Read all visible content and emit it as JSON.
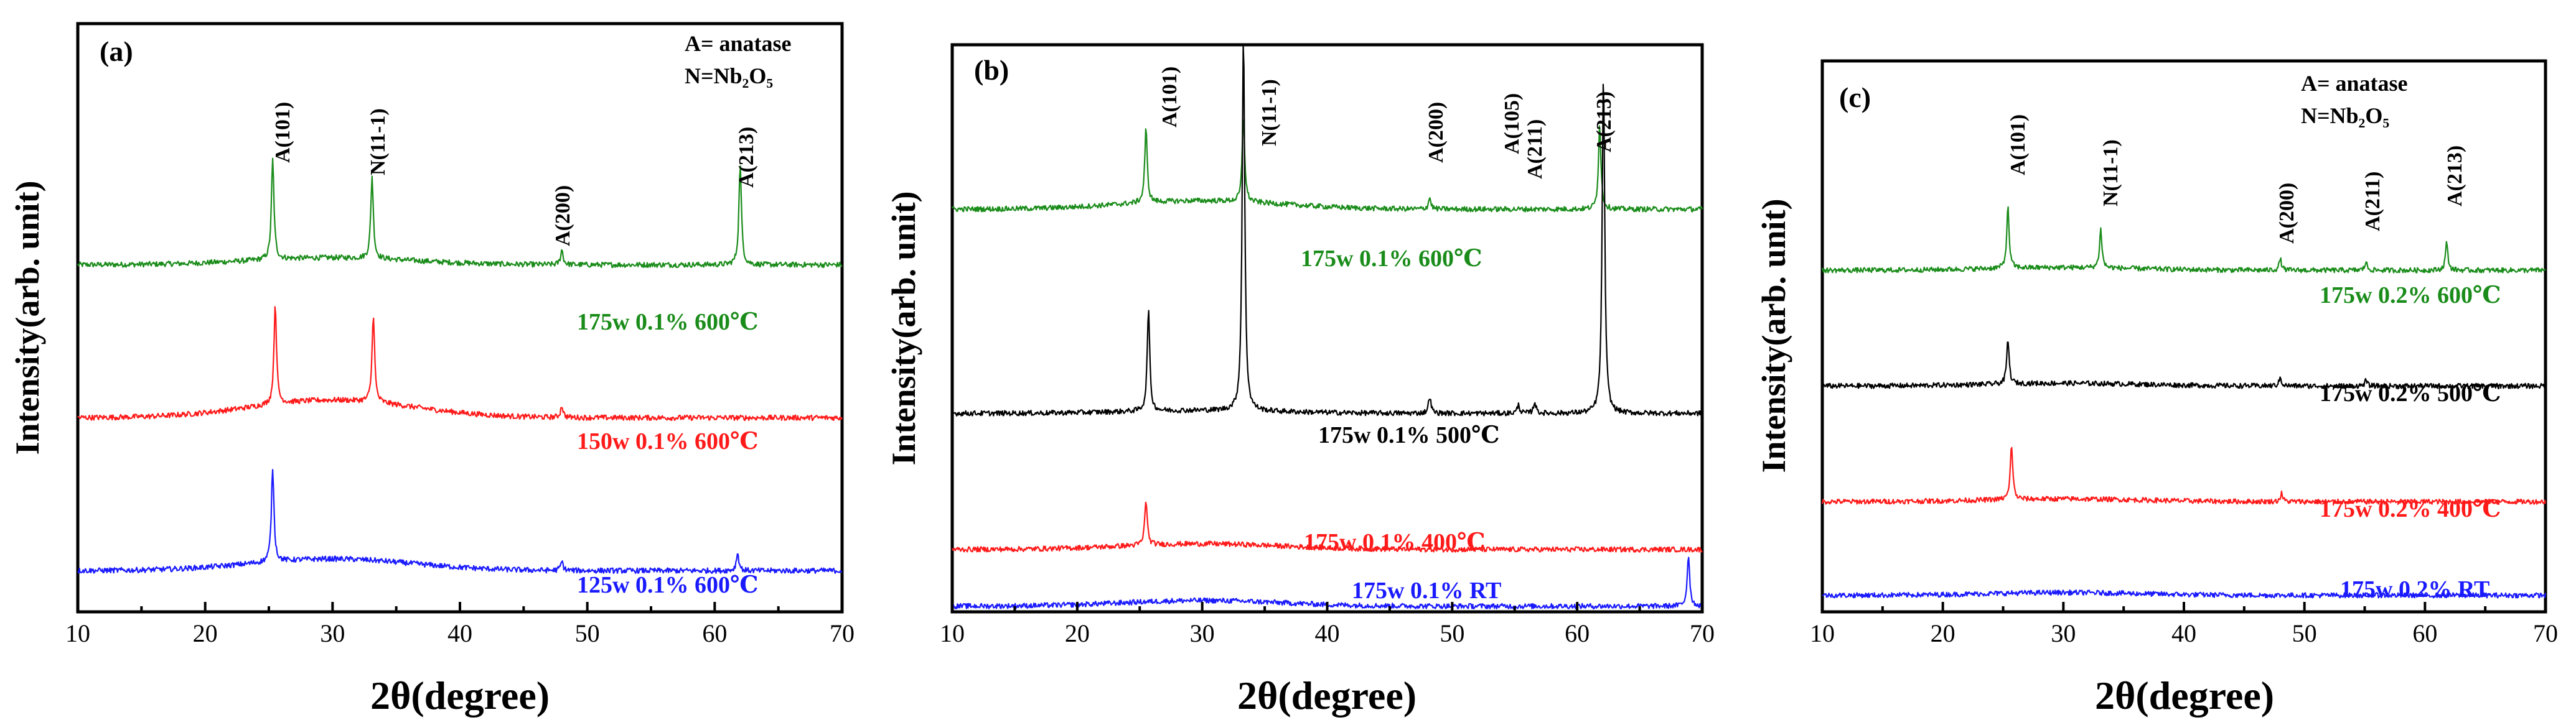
{
  "chart_data": [
    {
      "type": "line",
      "panel": "(a)",
      "xlabel": "2θ(degree)",
      "ylabel": "Intensity(arb. unit)",
      "xlim": [
        10,
        70
      ],
      "xticks": [
        10,
        20,
        30,
        40,
        50,
        60,
        70
      ],
      "ylim": [
        0,
        100
      ],
      "legend": [
        "A= anatase",
        "N=Nb₂O₅"
      ],
      "series": [
        {
          "name": "175w 0.1% 600℃",
          "color": "#1a8c1a",
          "baseline": 59,
          "hump": {
            "center": 30,
            "width": 9,
            "amp": 1.2
          },
          "peaks": [
            {
              "x": 25.3,
              "h": 17
            },
            {
              "x": 33.1,
              "h": 14
            },
            {
              "x": 48.0,
              "h": 2.5
            },
            {
              "x": 62.0,
              "h": 17
            }
          ]
        },
        {
          "name": "150w 0.1% 600℃",
          "color": "#ff1a1a",
          "baseline": 33,
          "hump": {
            "center": 30,
            "width": 9,
            "amp": 3
          },
          "peaks": [
            {
              "x": 25.5,
              "h": 17
            },
            {
              "x": 33.2,
              "h": 15
            },
            {
              "x": 48.0,
              "h": 2
            }
          ]
        },
        {
          "name": "125w 0.1% 600℃",
          "color": "#1a1aff",
          "baseline": 7,
          "hump": {
            "center": 30,
            "width": 9,
            "amp": 2
          },
          "peaks": [
            {
              "x": 25.3,
              "h": 16
            },
            {
              "x": 48.0,
              "h": 1.5
            },
            {
              "x": 61.8,
              "h": 3
            }
          ]
        }
      ],
      "peak_labels": [
        "A(101)",
        "N(11-1)",
        "A(200)",
        "A(213)"
      ]
    },
    {
      "type": "line",
      "panel": "(b)",
      "xlabel": "2θ(degree)",
      "ylabel": "Intensity(arb. unit)",
      "xlim": [
        10,
        70
      ],
      "xticks": [
        10,
        20,
        30,
        40,
        50,
        60,
        70
      ],
      "ylim": [
        0,
        100
      ],
      "legend": [],
      "series": [
        {
          "name": "175w 0.1% 600℃",
          "color": "#1a8c1a",
          "baseline": 71,
          "hump": {
            "center": 30,
            "width": 9,
            "amp": 1.5
          },
          "peaks": [
            {
              "x": 25.5,
              "h": 13
            },
            {
              "x": 33.3,
              "h": 15
            },
            {
              "x": 48.2,
              "h": 2
            },
            {
              "x": 61.8,
              "h": 15
            }
          ]
        },
        {
          "name": "175w 0.1% 500℃",
          "color": "#000000",
          "baseline": 35,
          "hump": {
            "center": 30,
            "width": 9,
            "amp": 0.5
          },
          "peaks": [
            {
              "x": 25.7,
              "h": 18
            },
            {
              "x": 33.3,
              "h": 67
            },
            {
              "x": 48.2,
              "h": 3
            },
            {
              "x": 55.3,
              "h": 1.5
            },
            {
              "x": 56.6,
              "h": 2
            },
            {
              "x": 62.1,
              "h": 60
            }
          ]
        },
        {
          "name": "175w 0.1% 400℃",
          "color": "#ff1a1a",
          "baseline": 11,
          "hump": {
            "center": 30,
            "width": 9,
            "amp": 1
          },
          "peaks": [
            {
              "x": 25.5,
              "h": 8
            }
          ]
        },
        {
          "name": "175w 0.1% RT",
          "color": "#1a1aff",
          "baseline": 1,
          "hump": {
            "center": 30,
            "width": 9,
            "amp": 1
          },
          "peaks": [
            {
              "x": 68.9,
              "h": 9
            }
          ]
        }
      ],
      "peak_labels": [
        "A(101)",
        "N(11-1)",
        "A(200)",
        "A(105)",
        "A(211)",
        "A(213)"
      ]
    },
    {
      "type": "line",
      "panel": "(c)",
      "xlabel": "2θ(degree)",
      "ylabel": "Intensity(arb. unit)",
      "xlim": [
        10,
        70
      ],
      "xticks": [
        10,
        20,
        30,
        40,
        50,
        60,
        70
      ],
      "ylim": [
        0,
        100
      ],
      "legend": [
        "A= anatase",
        "N=Nb₂O₅"
      ],
      "series": [
        {
          "name": "175w 0.2% 600℃",
          "color": "#1a8c1a",
          "baseline": 62,
          "hump": {
            "center": 30,
            "width": 9,
            "amp": 0.5
          },
          "peaks": [
            {
              "x": 25.4,
              "h": 11
            },
            {
              "x": 33.1,
              "h": 7
            },
            {
              "x": 48.0,
              "h": 2
            },
            {
              "x": 55.1,
              "h": 1.5
            },
            {
              "x": 61.8,
              "h": 5
            }
          ]
        },
        {
          "name": "175w 0.2% 500℃",
          "color": "#000000",
          "baseline": 41,
          "hump": {
            "center": 30,
            "width": 9,
            "amp": 0.5
          },
          "peaks": [
            {
              "x": 25.4,
              "h": 8
            },
            {
              "x": 48.0,
              "h": 1.5
            },
            {
              "x": 55.1,
              "h": 1
            }
          ]
        },
        {
          "name": "175w 0.2% 400℃",
          "color": "#ff1a1a",
          "baseline": 20,
          "hump": {
            "center": 30,
            "width": 9,
            "amp": 0.5
          },
          "peaks": [
            {
              "x": 25.7,
              "h": 10
            },
            {
              "x": 48.1,
              "h": 1.5
            }
          ]
        },
        {
          "name": "175w 0.2% RT",
          "color": "#1a1aff",
          "baseline": 3,
          "hump": {
            "center": 30,
            "width": 9,
            "amp": 0.5
          },
          "peaks": []
        }
      ],
      "peak_labels": [
        "A(101)",
        "N(11-1)",
        "A(200)",
        "A(211)",
        "A(213)"
      ]
    }
  ]
}
